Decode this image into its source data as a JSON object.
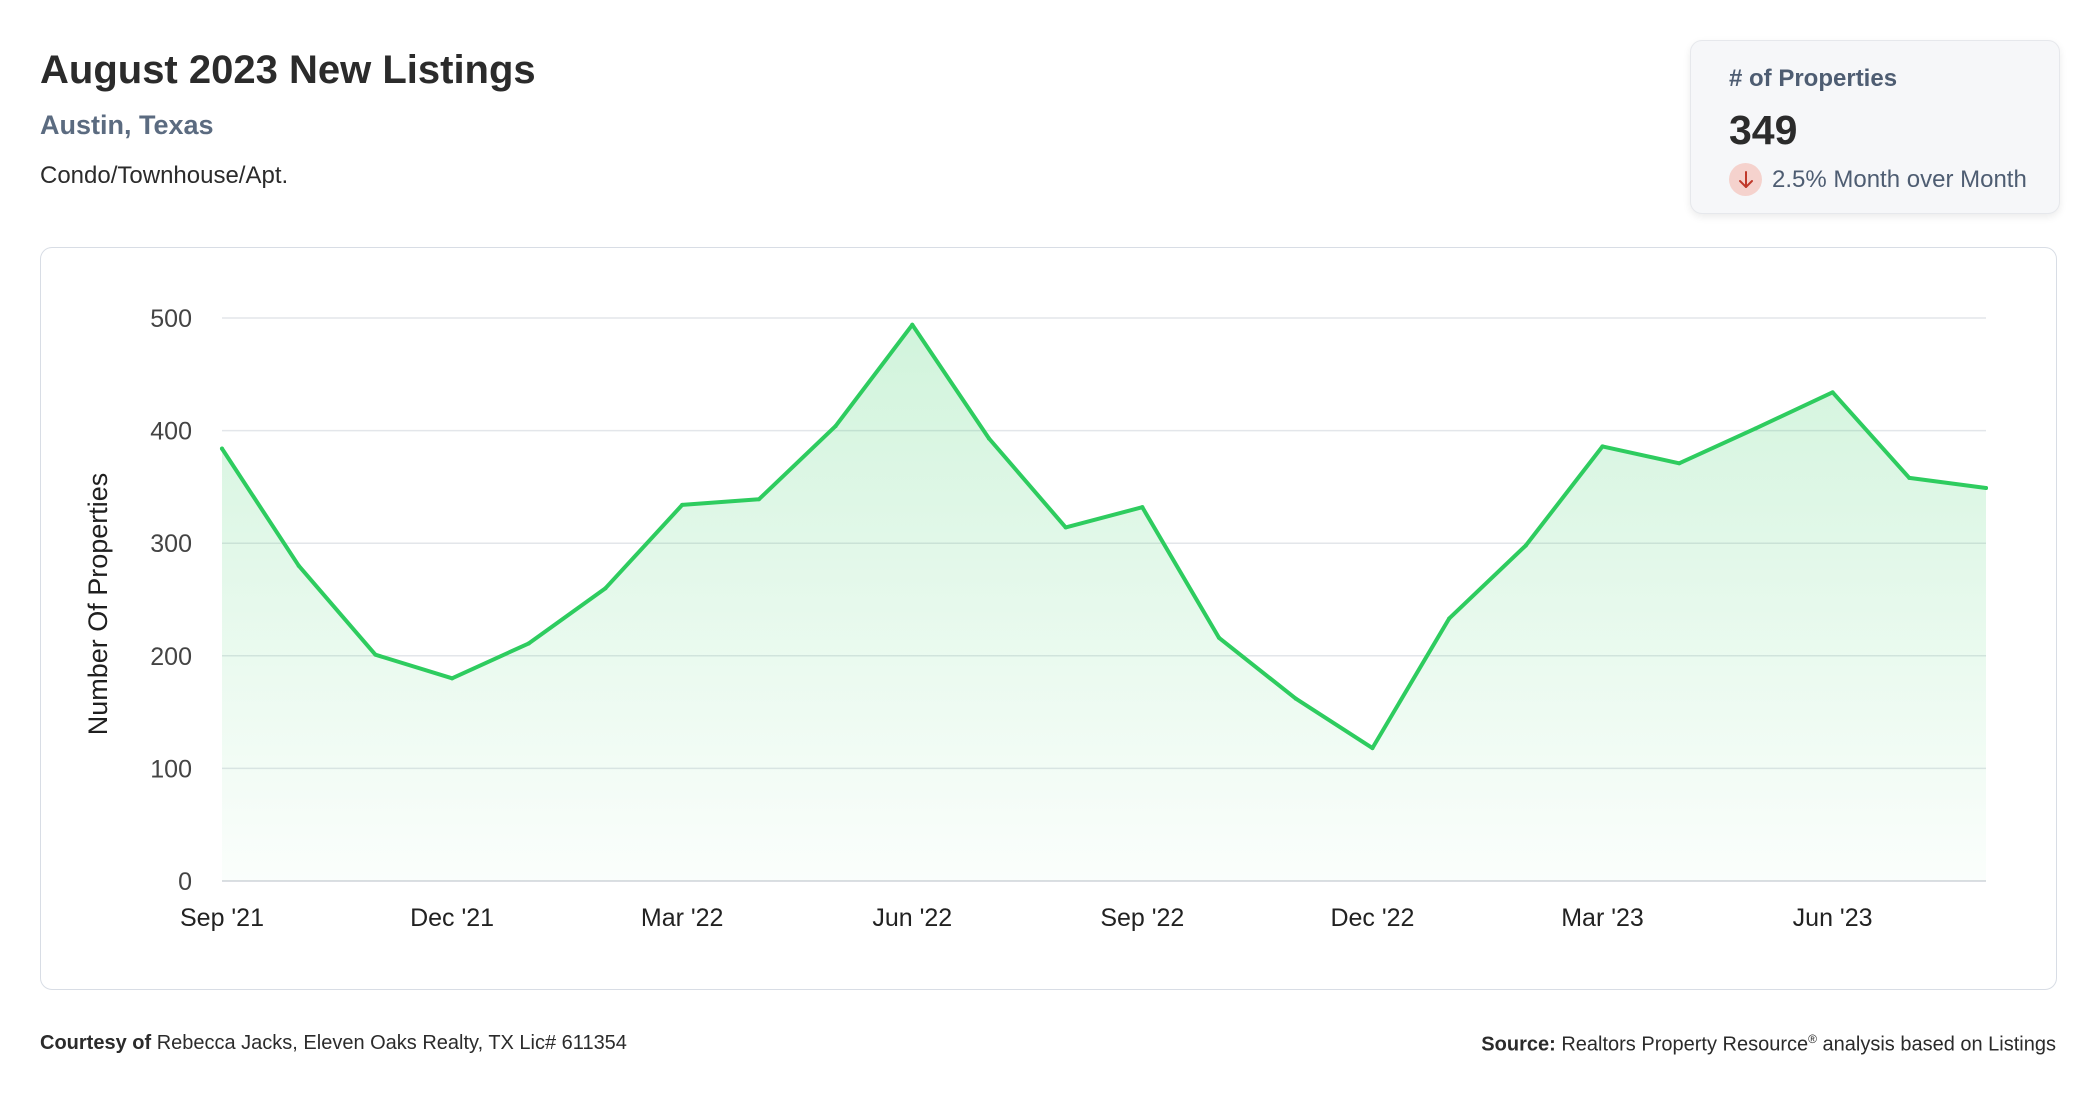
{
  "header": {
    "title": "August 2023 New Listings",
    "location": "Austin, Texas",
    "property_type": "Condo/Townhouse/Apt."
  },
  "stat_card": {
    "label": "# of Properties",
    "value": "349",
    "change_text": "2.5% Month over Month",
    "change_direction_icon": "arrow-down-icon",
    "change_color": "#c0392b"
  },
  "colors": {
    "line": "#2ecc5f",
    "fill": "#2ecc5f",
    "grid": "#e3e6ea"
  },
  "chart_data": {
    "type": "area",
    "title": "",
    "xlabel": "",
    "ylabel": "Number Of Properties",
    "ylim": [
      0,
      500
    ],
    "yticks": [
      0,
      100,
      200,
      300,
      400,
      500
    ],
    "grid": true,
    "x": [
      "Sep '21",
      "Oct '21",
      "Nov '21",
      "Dec '21",
      "Jan '22",
      "Feb '22",
      "Mar '22",
      "Apr '22",
      "May '22",
      "Jun '22",
      "Jul '22",
      "Aug '22",
      "Sep '22",
      "Oct '22",
      "Nov '22",
      "Dec '22",
      "Jan '23",
      "Feb '23",
      "Mar '23",
      "Apr '23",
      "May '23",
      "Jun '23",
      "Jul '23",
      "Aug '23"
    ],
    "xtick_labels": [
      "Sep '21",
      "Dec '21",
      "Mar '22",
      "Jun '22",
      "Sep '22",
      "Dec '22",
      "Mar '23",
      "Jun '23"
    ],
    "xtick_indices": [
      0,
      3,
      6,
      9,
      12,
      15,
      18,
      21
    ],
    "series": [
      {
        "values": [
          384,
          280,
          201,
          180,
          211,
          260,
          334,
          339,
          404,
          494,
          393,
          314,
          332,
          216,
          162,
          118,
          233,
          298,
          386,
          371,
          402,
          434,
          358,
          349
        ]
      }
    ]
  },
  "footer": {
    "courtesy_label": "Courtesy of",
    "courtesy_text": "Rebecca Jacks, Eleven Oaks Realty, TX Lic# 611354",
    "source_label": "Source:",
    "source_name": "Realtors Property Resource",
    "source_mark": "®",
    "source_suffix": "analysis based on Listings"
  }
}
